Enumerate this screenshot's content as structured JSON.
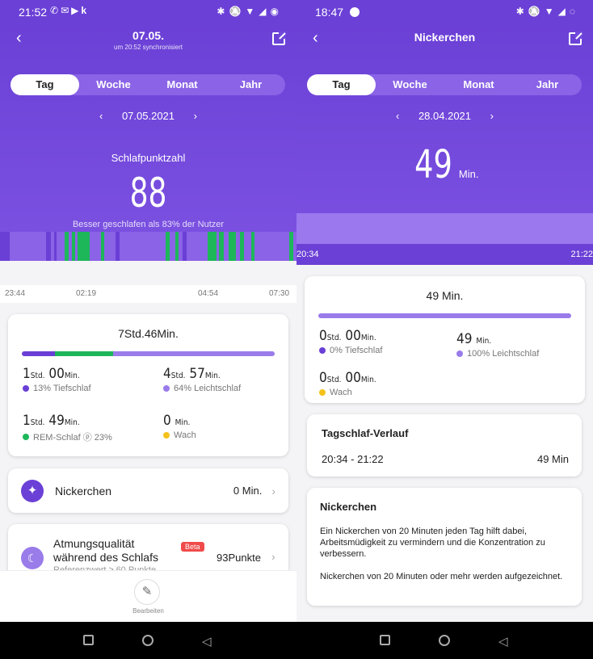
{
  "left": {
    "status": {
      "time": "21:52",
      "app_icons": [
        "✆",
        "✉",
        "▶",
        "k"
      ],
      "sys_icons": [
        "✱",
        "🔕",
        "▼",
        "◢",
        "◉"
      ]
    },
    "header": {
      "title": "07.05.",
      "subtitle": "um 20:52 synchronisiert"
    },
    "tabs": [
      "Tag",
      "Woche",
      "Monat",
      "Jahr"
    ],
    "active_tab": "Tag",
    "date": "07.05.2021",
    "score_label": "Schlafpunktzahl",
    "score": "88",
    "comparison": "Besser geschlafen als 83% der Nutzer",
    "time_ticks": [
      "23:44",
      "02:19",
      "04:54",
      "07:30"
    ],
    "summary": {
      "total": "7Std.46Min.",
      "bar_segments": [
        {
          "color": "#6a3fd6",
          "fraction": 0.13
        },
        {
          "color": "#1db75a",
          "fraction": 0.23
        },
        {
          "color": "#9a7bea",
          "fraction": 0.64
        }
      ],
      "stats": [
        {
          "h": "1",
          "hu": "Std.",
          "m": "00",
          "mu": "Min.",
          "label": "13% Tiefschlaf",
          "color": "#6a3fd6"
        },
        {
          "h": "4",
          "hu": "Std.",
          "m": "57",
          "mu": "Min.",
          "label": "64% Leichtschlaf",
          "color": "#9a7bea"
        },
        {
          "h": "1",
          "hu": "Std.",
          "m": "49",
          "mu": "Min.",
          "label": "REM-Schlaf ⓟ 23%",
          "color": "#1db75a"
        },
        {
          "h": "",
          "hu": "",
          "m": "0",
          "mu": "Min.",
          "label": "Wach",
          "color": "#f5c21b"
        }
      ]
    },
    "nap_row": {
      "label": "Nickerchen",
      "value": "0 Min."
    },
    "breathing_row": {
      "title": "Atmungsqualität während des Schlafs",
      "badge": "Beta",
      "value": "93Punkte",
      "subtext": "Referenzwert ≥ 60 Punkte"
    },
    "edit_label": "Bearbeiten"
  },
  "right": {
    "status": {
      "time": "18:47",
      "sys_icons": [
        "✱",
        "🔕",
        "▼",
        "◢",
        "◌"
      ]
    },
    "header": {
      "title": "Nickerchen"
    },
    "tabs": [
      "Tag",
      "Woche",
      "Monat",
      "Jahr"
    ],
    "active_tab": "Tag",
    "date": "28.04.2021",
    "big_value": "49",
    "big_unit": "Min.",
    "time_start": "20:34",
    "time_end": "21:22",
    "summary": {
      "total": "49 Min.",
      "stats": [
        {
          "h": "0",
          "hu": "Std.",
          "m": "00",
          "mu": "Min.",
          "label": "0% Tiefschlaf",
          "color": "#6a3fd6"
        },
        {
          "h": "",
          "hu": "",
          "m": "49",
          "mu": "Min.",
          "label": "100% Leichtschlaf",
          "color": "#9a7bea"
        },
        {
          "h": "0",
          "hu": "Std.",
          "m": "00",
          "mu": "Min.",
          "label": "Wach",
          "color": "#f5c21b"
        }
      ]
    },
    "history": {
      "title": "Tagschlaf-Verlauf",
      "range": "20:34 - 21:22",
      "duration": "49 Min"
    },
    "info": {
      "title": "Nickerchen",
      "p1": "Ein Nickerchen von 20 Minuten jeden Tag hilft dabei, Arbeitsmüdigkeit zu vermindern und die Konzentration zu verbessern.",
      "p2": "Nickerchen von 20 Minuten oder mehr werden aufgezeichnet."
    }
  },
  "colors": {
    "purple": "#6b40d6",
    "deep": "#6a3fd6",
    "light": "#9a7bea",
    "green": "#1db75a",
    "yellow": "#f5c21b"
  }
}
